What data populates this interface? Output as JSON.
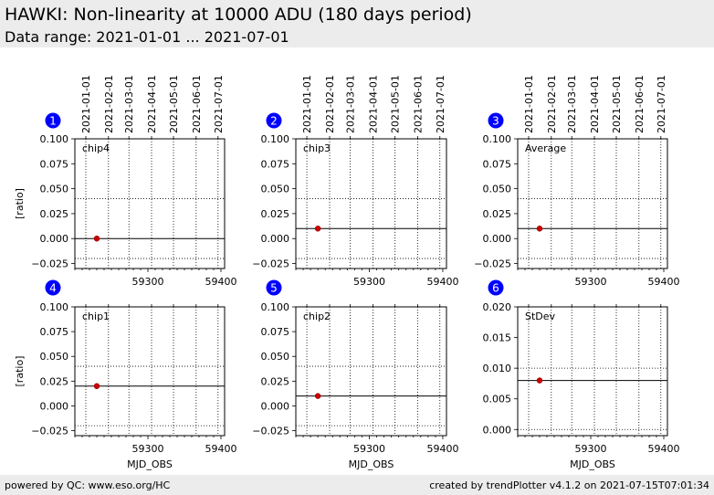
{
  "header": {
    "title": "HAWKI: Non-linearity at 10000 ADU (180 days period)",
    "subtitle": "Data range: 2021-01-01 ... 2021-07-01"
  },
  "footer": {
    "left": "powered by QC: www.eso.org/HC",
    "right": "created by trendPlotter v4.1.2 on 2021-07-15T07:01:34"
  },
  "colors": {
    "marker": "#cc0000",
    "badge": "#0000ff",
    "header_bg": "#ececec"
  },
  "chart_data": [
    {
      "type": "scatter",
      "panel": "1",
      "label": "chip4",
      "ylabel": "[ratio]",
      "xlabel": "",
      "xlim": [
        59200,
        59405
      ],
      "ylim": [
        -0.03,
        0.1
      ],
      "yticks": [
        0.1,
        0.075,
        0.05,
        0.025,
        0.0,
        -0.025
      ],
      "ytick_labels": [
        "0.100",
        "0.075",
        "0.050",
        "0.025",
        "0.000",
        "−0.025"
      ],
      "xticks": [
        59300,
        59400
      ],
      "xtick_labels": [
        "59300",
        "59400"
      ],
      "date_ticks": [
        59215,
        59246,
        59274,
        59305,
        59335,
        59366,
        59396
      ],
      "date_labels": [
        "2021-01-01",
        "2021-02-01",
        "2021-03-01",
        "2021-04-01",
        "2021-05-01",
        "2021-06-01",
        "2021-07-01"
      ],
      "points": [
        {
          "x": 59230,
          "y": 0.0
        }
      ],
      "ref_line": 0.0,
      "limit_lines": [
        0.04,
        -0.02
      ]
    },
    {
      "type": "scatter",
      "panel": "2",
      "label": "chip3",
      "ylabel": "",
      "xlabel": "",
      "xlim": [
        59200,
        59405
      ],
      "ylim": [
        -0.03,
        0.1
      ],
      "yticks": [
        0.1,
        0.075,
        0.05,
        0.025,
        0.0,
        -0.025
      ],
      "ytick_labels": [
        "0.100",
        "0.075",
        "0.050",
        "0.025",
        "0.000",
        "−0.025"
      ],
      "xticks": [
        59300,
        59400
      ],
      "xtick_labels": [
        "59300",
        "59400"
      ],
      "date_ticks": [
        59215,
        59246,
        59274,
        59305,
        59335,
        59366,
        59396
      ],
      "date_labels": [
        "2021-01-01",
        "2021-02-01",
        "2021-03-01",
        "2021-04-01",
        "2021-05-01",
        "2021-06-01",
        "2021-07-01"
      ],
      "points": [
        {
          "x": 59230,
          "y": 0.01
        }
      ],
      "ref_line": 0.01,
      "limit_lines": [
        0.04,
        -0.02
      ]
    },
    {
      "type": "scatter",
      "panel": "3",
      "label": "Average",
      "ylabel": "",
      "xlabel": "",
      "xlim": [
        59200,
        59405
      ],
      "ylim": [
        -0.03,
        0.1
      ],
      "yticks": [
        0.1,
        0.075,
        0.05,
        0.025,
        0.0,
        -0.025
      ],
      "ytick_labels": [
        "0.100",
        "0.075",
        "0.050",
        "0.025",
        "0.000",
        "−0.025"
      ],
      "xticks": [
        59300,
        59400
      ],
      "xtick_labels": [
        "59300",
        "59400"
      ],
      "date_ticks": [
        59215,
        59246,
        59274,
        59305,
        59335,
        59366,
        59396
      ],
      "date_labels": [
        "2021-01-01",
        "2021-02-01",
        "2021-03-01",
        "2021-04-01",
        "2021-05-01",
        "2021-06-01",
        "2021-07-01"
      ],
      "points": [
        {
          "x": 59230,
          "y": 0.01
        }
      ],
      "ref_line": 0.01,
      "limit_lines": [
        0.04,
        -0.02
      ]
    },
    {
      "type": "scatter",
      "panel": "4",
      "label": "chip1",
      "ylabel": "[ratio]",
      "xlabel": "MJD_OBS",
      "xlim": [
        59200,
        59405
      ],
      "ylim": [
        -0.03,
        0.1
      ],
      "yticks": [
        0.1,
        0.075,
        0.05,
        0.025,
        0.0,
        -0.025
      ],
      "ytick_labels": [
        "0.100",
        "0.075",
        "0.050",
        "0.025",
        "0.000",
        "−0.025"
      ],
      "xticks": [
        59300,
        59400
      ],
      "xtick_labels": [
        "59300",
        "59400"
      ],
      "date_ticks": [
        59215,
        59246,
        59274,
        59305,
        59335,
        59366,
        59396
      ],
      "date_labels": [],
      "points": [
        {
          "x": 59230,
          "y": 0.02
        }
      ],
      "ref_line": 0.02,
      "limit_lines": [
        0.04,
        -0.02
      ]
    },
    {
      "type": "scatter",
      "panel": "5",
      "label": "chip2",
      "ylabel": "",
      "xlabel": "MJD_OBS",
      "xlim": [
        59200,
        59405
      ],
      "ylim": [
        -0.03,
        0.1
      ],
      "yticks": [
        0.1,
        0.075,
        0.05,
        0.025,
        0.0,
        -0.025
      ],
      "ytick_labels": [
        "0.100",
        "0.075",
        "0.050",
        "0.025",
        "0.000",
        "−0.025"
      ],
      "xticks": [
        59300,
        59400
      ],
      "xtick_labels": [
        "59300",
        "59400"
      ],
      "date_ticks": [
        59215,
        59246,
        59274,
        59305,
        59335,
        59366,
        59396
      ],
      "date_labels": [],
      "points": [
        {
          "x": 59230,
          "y": 0.01
        }
      ],
      "ref_line": 0.01,
      "limit_lines": [
        0.04,
        -0.02
      ]
    },
    {
      "type": "scatter",
      "panel": "6",
      "label": "StDev",
      "ylabel": "",
      "xlabel": "MJD_OBS",
      "xlim": [
        59200,
        59405
      ],
      "ylim": [
        -0.001,
        0.02
      ],
      "yticks": [
        0.02,
        0.015,
        0.01,
        0.005,
        0.0
      ],
      "ytick_labels": [
        "0.020",
        "0.015",
        "0.010",
        "0.005",
        "0.000"
      ],
      "xticks": [
        59300,
        59400
      ],
      "xtick_labels": [
        "59300",
        "59400"
      ],
      "date_ticks": [
        59215,
        59246,
        59274,
        59305,
        59335,
        59366,
        59396
      ],
      "date_labels": [],
      "points": [
        {
          "x": 59230,
          "y": 0.008
        }
      ],
      "ref_line": 0.008,
      "limit_lines": [
        0.01,
        0.0
      ]
    }
  ]
}
